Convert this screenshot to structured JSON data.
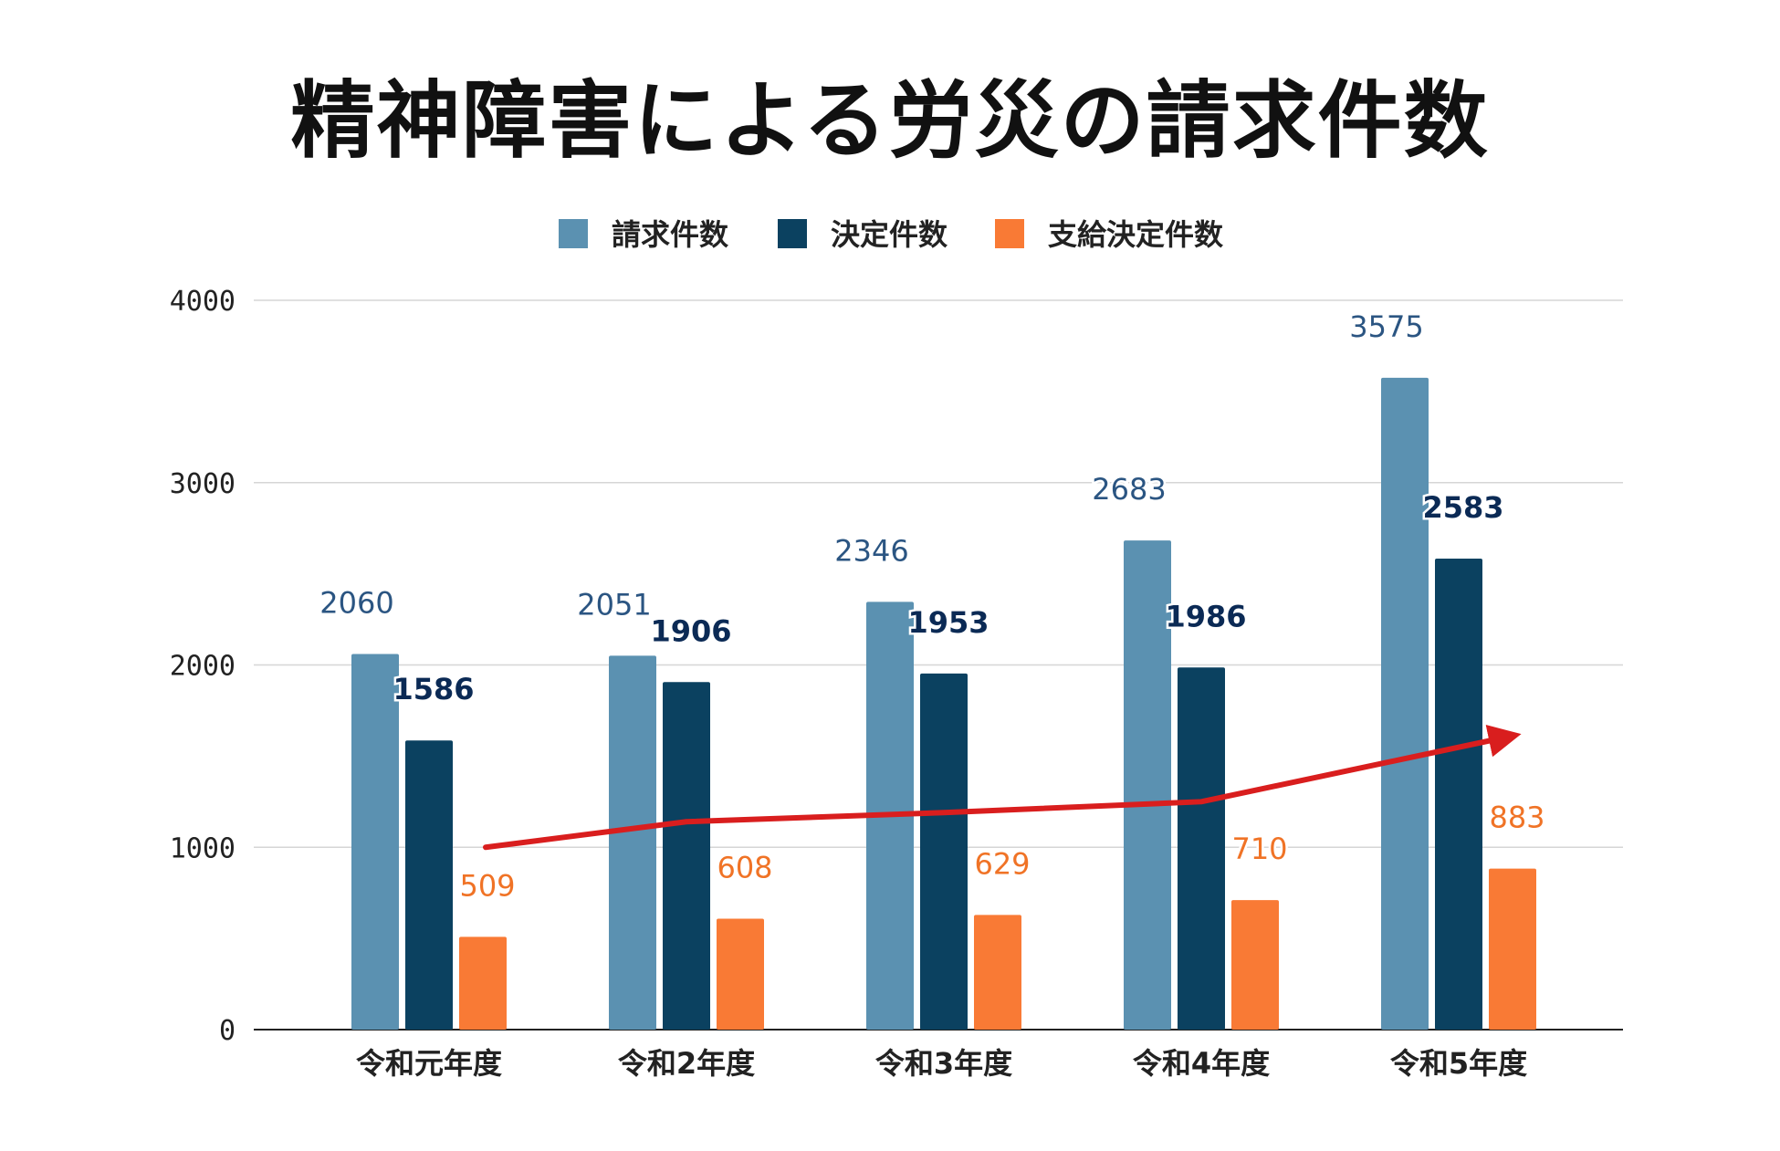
{
  "chart_data": {
    "type": "bar",
    "title": "精神障害による労災の請求件数",
    "xlabel": "",
    "ylabel": "",
    "ylim": [
      0,
      4000
    ],
    "yticks": [
      0,
      1000,
      2000,
      3000,
      4000
    ],
    "grid": true,
    "legend_position": "top-center",
    "categories": [
      "令和元年度",
      "令和2年度",
      "令和3年度",
      "令和4年度",
      "令和5年度"
    ],
    "series": [
      {
        "name": "請求件数",
        "color": "#5B91B1",
        "label_color": "#2B5582",
        "values": [
          2060,
          2051,
          2346,
          2683,
          3575
        ]
      },
      {
        "name": "決定件数",
        "color": "#0B4160",
        "label_color": "#0B2A55",
        "values": [
          1586,
          1906,
          1953,
          1986,
          2583
        ]
      },
      {
        "name": "支給決定件数",
        "color": "#F97A35",
        "label_color": "#F07326",
        "values": [
          509,
          608,
          629,
          710,
          883
        ]
      }
    ],
    "trend_arrow": {
      "color": "#D91E1E",
      "description": "upward trend",
      "points": [
        [
          0,
          1000
        ],
        [
          1,
          1140
        ],
        [
          2,
          1190
        ],
        [
          3,
          1250
        ],
        [
          4,
          1610
        ]
      ]
    }
  }
}
